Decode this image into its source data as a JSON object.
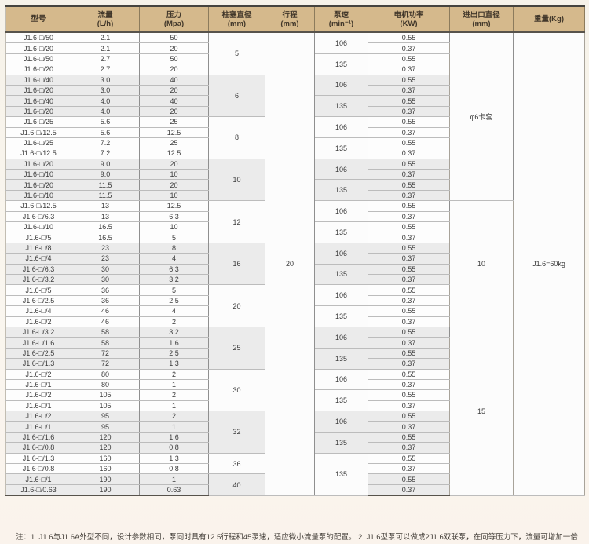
{
  "table": {
    "headers": [
      {
        "line1": "型号",
        "line2": ""
      },
      {
        "line1": "流量",
        "line2": "(L/h)"
      },
      {
        "line1": "压力",
        "line2": "(Mpa)"
      },
      {
        "line1": "柱塞直径",
        "line2": "(mm)"
      },
      {
        "line1": "行程",
        "line2": "(mm)"
      },
      {
        "line1": "泵速",
        "line2": "(min⁻¹)"
      },
      {
        "line1": "电机功率",
        "line2": "(KW)"
      },
      {
        "line1": "进出口直径",
        "line2": "(mm)"
      },
      {
        "line1": "重量(Kg)",
        "line2": ""
      }
    ],
    "rows": [
      {
        "model": "J1.6-□/50",
        "flow": "2.1",
        "pressure": "50",
        "power": "0.55"
      },
      {
        "model": "J1.6-□/20",
        "flow": "2.1",
        "pressure": "20",
        "power": "0.37"
      },
      {
        "model": "J1.6-□/50",
        "flow": "2.7",
        "pressure": "50",
        "power": "0.55"
      },
      {
        "model": "J1.6-□/20",
        "flow": "2.7",
        "pressure": "20",
        "power": "0.37"
      },
      {
        "model": "J1.6-□/40",
        "flow": "3.0",
        "pressure": "40",
        "power": "0.55"
      },
      {
        "model": "J1.6-□/20",
        "flow": "3.0",
        "pressure": "20",
        "power": "0.37"
      },
      {
        "model": "J1.6-□/40",
        "flow": "4.0",
        "pressure": "40",
        "power": "0.55"
      },
      {
        "model": "J1.6-□/20",
        "flow": "4.0",
        "pressure": "20",
        "power": "0.37"
      },
      {
        "model": "J1.6-□/25",
        "flow": "5.6",
        "pressure": "25",
        "power": "0.55"
      },
      {
        "model": "J1.6-□/12.5",
        "flow": "5.6",
        "pressure": "12.5",
        "power": "0.37"
      },
      {
        "model": "J1.6-□/25",
        "flow": "7.2",
        "pressure": "25",
        "power": "0.55"
      },
      {
        "model": "J1.6-□/12.5",
        "flow": "7.2",
        "pressure": "12.5",
        "power": "0.37"
      },
      {
        "model": "J1.6-□/20",
        "flow": "9.0",
        "pressure": "20",
        "power": "0.55"
      },
      {
        "model": "J1.6-□/10",
        "flow": "9.0",
        "pressure": "10",
        "power": "0.37"
      },
      {
        "model": "J1.6-□/20",
        "flow": "11.5",
        "pressure": "20",
        "power": "0.55"
      },
      {
        "model": "J1.6-□/10",
        "flow": "11.5",
        "pressure": "10",
        "power": "0.37"
      },
      {
        "model": "J1.6-□/12.5",
        "flow": "13",
        "pressure": "12.5",
        "power": "0.55"
      },
      {
        "model": "J1.6-□/6.3",
        "flow": "13",
        "pressure": "6.3",
        "power": "0.37"
      },
      {
        "model": "J1.6-□/10",
        "flow": "16.5",
        "pressure": "10",
        "power": "0.55"
      },
      {
        "model": "J1.6-□/5",
        "flow": "16.5",
        "pressure": "5",
        "power": "0.37"
      },
      {
        "model": "J1.6-□/8",
        "flow": "23",
        "pressure": "8",
        "power": "0.55"
      },
      {
        "model": "J1.6-□/4",
        "flow": "23",
        "pressure": "4",
        "power": "0.37"
      },
      {
        "model": "J1.6-□/6.3",
        "flow": "30",
        "pressure": "6.3",
        "power": "0.55"
      },
      {
        "model": "J1.6-□/3.2",
        "flow": "30",
        "pressure": "3.2",
        "power": "0.37"
      },
      {
        "model": "J1.6-□/5",
        "flow": "36",
        "pressure": "5",
        "power": "0.55"
      },
      {
        "model": "J1.6-□/2.5",
        "flow": "36",
        "pressure": "2.5",
        "power": "0.37"
      },
      {
        "model": "J1.6-□/4",
        "flow": "46",
        "pressure": "4",
        "power": "0.55"
      },
      {
        "model": "J1.6-□/2",
        "flow": "46",
        "pressure": "2",
        "power": "0.37"
      },
      {
        "model": "J1.6-□/3.2",
        "flow": "58",
        "pressure": "3.2",
        "power": "0.55"
      },
      {
        "model": "J1.6-□/1.6",
        "flow": "58",
        "pressure": "1.6",
        "power": "0.37"
      },
      {
        "model": "J1.6-□/2.5",
        "flow": "72",
        "pressure": "2.5",
        "power": "0.55"
      },
      {
        "model": "J1.6-□/1.3",
        "flow": "72",
        "pressure": "1.3",
        "power": "0.37"
      },
      {
        "model": "J1.6-□/2",
        "flow": "80",
        "pressure": "2",
        "power": "0.55"
      },
      {
        "model": "J1.6-□/1",
        "flow": "80",
        "pressure": "1",
        "power": "0.37"
      },
      {
        "model": "J1.6-□/2",
        "flow": "105",
        "pressure": "2",
        "power": "0.55"
      },
      {
        "model": "J1.6-□/1",
        "flow": "105",
        "pressure": "1",
        "power": "0.37"
      },
      {
        "model": "J1.6-□/2",
        "flow": "95",
        "pressure": "2",
        "power": "0.55"
      },
      {
        "model": "J1.6-□/1",
        "flow": "95",
        "pressure": "1",
        "power": "0.37"
      },
      {
        "model": "J1.6-□/1.6",
        "flow": "120",
        "pressure": "1.6",
        "power": "0.55"
      },
      {
        "model": "J1.6-□/0.8",
        "flow": "120",
        "pressure": "0.8",
        "power": "0.37"
      },
      {
        "model": "J1.6-□/1.3",
        "flow": "160",
        "pressure": "1.3",
        "power": "0.55"
      },
      {
        "model": "J1.6-□/0.8",
        "flow": "160",
        "pressure": "0.8",
        "power": "0.37"
      },
      {
        "model": "J1.6-□/1",
        "flow": "190",
        "pressure": "1",
        "power": "0.55"
      },
      {
        "model": "J1.6-□/0.63",
        "flow": "190",
        "pressure": "0.63",
        "power": "0.37"
      }
    ],
    "plunger_groups": [
      {
        "value": "5",
        "rows": 4
      },
      {
        "value": "6",
        "rows": 4
      },
      {
        "value": "8",
        "rows": 4
      },
      {
        "value": "10",
        "rows": 4
      },
      {
        "value": "12",
        "rows": 4
      },
      {
        "value": "16",
        "rows": 4
      },
      {
        "value": "20",
        "rows": 4
      },
      {
        "value": "25",
        "rows": 4
      },
      {
        "value": "30",
        "rows": 4
      },
      {
        "value": "32",
        "rows": 4
      },
      {
        "value": "36",
        "rows": 2
      },
      {
        "value": "40",
        "rows": 2
      }
    ],
    "stroke": "20",
    "speed_groups": [
      {
        "value": "106",
        "rows": 2
      },
      {
        "value": "135",
        "rows": 2
      },
      {
        "value": "106",
        "rows": 2
      },
      {
        "value": "135",
        "rows": 2
      },
      {
        "value": "106",
        "rows": 2
      },
      {
        "value": "135",
        "rows": 2
      },
      {
        "value": "106",
        "rows": 2
      },
      {
        "value": "135",
        "rows": 2
      },
      {
        "value": "106",
        "rows": 2
      },
      {
        "value": "135",
        "rows": 2
      },
      {
        "value": "106",
        "rows": 2
      },
      {
        "value": "135",
        "rows": 2
      },
      {
        "value": "106",
        "rows": 2
      },
      {
        "value": "135",
        "rows": 2
      },
      {
        "value": "106",
        "rows": 2
      },
      {
        "value": "135",
        "rows": 2
      },
      {
        "value": "106",
        "rows": 2
      },
      {
        "value": "135",
        "rows": 2
      },
      {
        "value": "106",
        "rows": 2
      },
      {
        "value": "135",
        "rows": 2
      },
      {
        "value": "135",
        "rows": 4
      }
    ],
    "inlet_groups": [
      {
        "value": "φ6卡套",
        "rows": 16
      },
      {
        "value": "10",
        "rows": 12
      },
      {
        "value": "15",
        "rows": 16
      }
    ],
    "weight": "J1.6=60kg"
  },
  "note": "注：1. J1.6与J1.6A外型不同，设计参数相同，泵同时具有12.5行程和45泵速，适应微小流量泵的配置。 2. J1.6型泵可以做成2J1.6双联泵，在同等压力下，流量可增加一倍",
  "colors": {
    "header_bg": "#d5b98c",
    "header_text": "#41372a",
    "row_white": "#fdfdfd",
    "row_gray": "#ebebeb",
    "grid_vertical": "#8f8f8f",
    "grid_horizontal": "#bcbcbc",
    "frame_dark": "#57534c",
    "page_bg": "#f8f4ec"
  }
}
